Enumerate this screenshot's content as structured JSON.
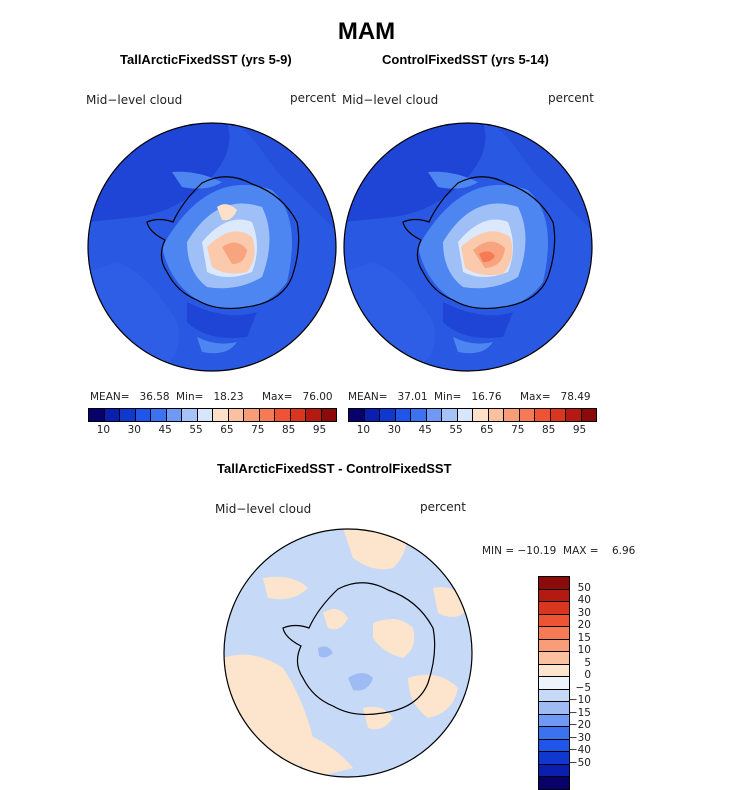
{
  "title": "MAM",
  "panels": [
    {
      "subtitle": "TallArcticFixedSST (yrs 5-9)",
      "variable": "Mid−level cloud",
      "units": "percent",
      "mean_text": "MEAN=   36.58",
      "min_text": "Min=   18.23",
      "max_text": "Max=   76.00"
    },
    {
      "subtitle": "ControlFixedSST (yrs 5-14)",
      "variable": "Mid−level cloud",
      "units": "percent",
      "mean_text": "MEAN=   37.01",
      "min_text": "Min=   16.76",
      "max_text": "Max=   78.49"
    }
  ],
  "abs_colorbar": {
    "colors": [
      "#08006b",
      "#0a1fb0",
      "#1038cf",
      "#1f55e8",
      "#3b72f0",
      "#6f99f5",
      "#a6c3f9",
      "#d8e6fb",
      "#fde0c8",
      "#fbc0a0",
      "#f89d78",
      "#f57a55",
      "#ee5433",
      "#d9351f",
      "#b51a12",
      "#8b0a0a"
    ],
    "ticks": [
      "10",
      "30",
      "45",
      "55",
      "65",
      "75",
      "85",
      "95"
    ]
  },
  "diff": {
    "subtitle": "TallArcticFixedSST - ControlFixedSST",
    "variable": "Mid−level cloud",
    "units": "percent",
    "minmax_text": "MIN = −10.19  MAX =    6.96",
    "colorbar_colors": [
      "#8b0a0a",
      "#b51a12",
      "#d9351f",
      "#ee5433",
      "#f57a55",
      "#f89d78",
      "#fbc0a0",
      "#fde4cc",
      "#eef4fb",
      "#c6d9f7",
      "#9ebcf3",
      "#6f99f5",
      "#3b72f0",
      "#1f55e8",
      "#1038cf",
      "#0a1fb0",
      "#08006b"
    ],
    "ticks": [
      "50",
      "40",
      "30",
      "20",
      "15",
      "10",
      "5",
      "0",
      "−5",
      "−10",
      "−15",
      "−20",
      "−30",
      "−40",
      "−50"
    ]
  }
}
